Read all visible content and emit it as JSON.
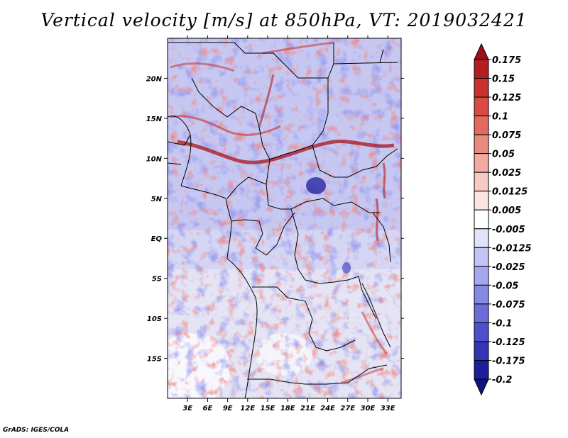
{
  "title": "Vertical velocity [m/s] at 850hPa, VT: 2019032421",
  "credit": "GrADS: IGES/COLA",
  "map": {
    "lon_range": [
      0,
      35
    ],
    "lat_range": [
      -20,
      25
    ],
    "lon_ticks": [
      "3E",
      "6E",
      "9E",
      "12E",
      "15E",
      "18E",
      "21E",
      "24E",
      "27E",
      "30E",
      "33E"
    ],
    "lon_tick_values": [
      3,
      6,
      9,
      12,
      15,
      18,
      21,
      24,
      27,
      30,
      33
    ],
    "lat_ticks": [
      "20N",
      "15N",
      "10N",
      "5N",
      "EQ",
      "5S",
      "10S",
      "15S"
    ],
    "lat_tick_values": [
      20,
      15,
      10,
      5,
      0,
      -5,
      -10,
      -15
    ]
  },
  "colorbar": {
    "labels": [
      "0.175",
      "0.15",
      "0.125",
      "0.1",
      "0.075",
      "0.05",
      "0.025",
      "0.0125",
      "0.005",
      "-0.005",
      "-0.0125",
      "-0.025",
      "-0.05",
      "-0.075",
      "-0.1",
      "-0.125",
      "-0.175",
      "-0.2"
    ],
    "colors": [
      "#9e0f1a",
      "#b41e22",
      "#c8312f",
      "#d94a44",
      "#e26a5f",
      "#ea8a7f",
      "#f2aaa1",
      "#f7c9c3",
      "#fbe3df",
      "#ffffff",
      "#e1e2fb",
      "#c3c5f6",
      "#a5a8ef",
      "#8789e6",
      "#6b6cda",
      "#4e4fcb",
      "#3334b8",
      "#1e1e9c",
      "#12127e"
    ]
  },
  "legend_colors": {
    "coast": "#000000",
    "ocean_base": "#c9cdf3"
  }
}
